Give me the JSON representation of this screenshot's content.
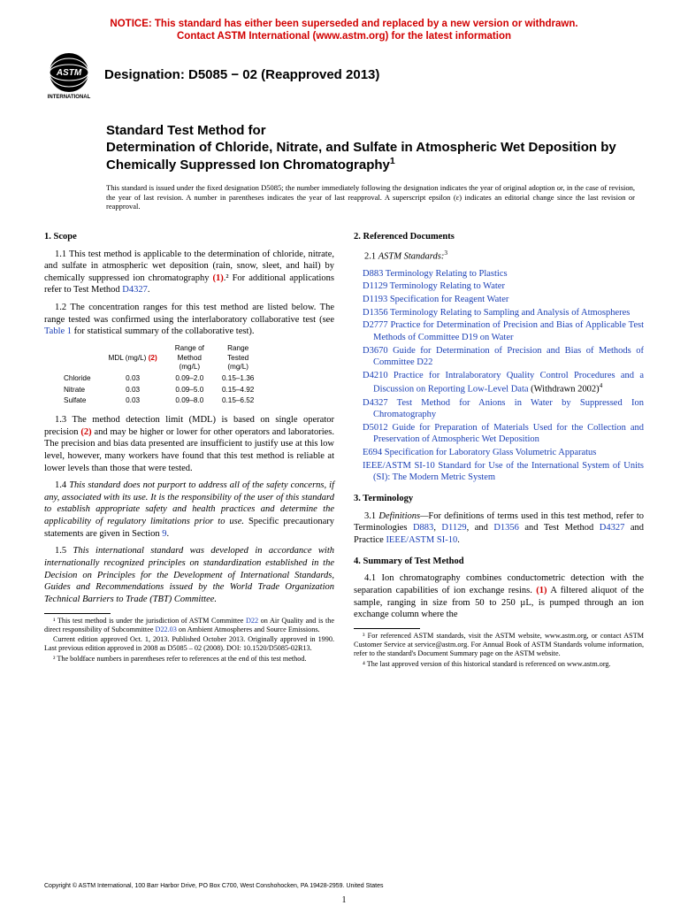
{
  "notice": {
    "line1": "NOTICE: This standard has either been superseded and replaced by a new version or withdrawn.",
    "line2": "Contact ASTM International (www.astm.org) for the latest information"
  },
  "logo": {
    "top_text": "ASTM",
    "bottom_text": "INTERNATIONAL",
    "fill": "#000000"
  },
  "designation": "Designation: D5085 − 02 (Reapproved 2013)",
  "title": {
    "lead": "Standard Test Method for",
    "main": "Determination of Chloride, Nitrate, and Sulfate in Atmospheric Wet Deposition by Chemically Suppressed Ion Chromatography",
    "sup": "1"
  },
  "issue_note": "This standard is issued under the fixed designation D5085; the number immediately following the designation indicates the year of original adoption or, in the case of revision, the year of last revision. A number in parentheses indicates the year of last reapproval. A superscript epsilon (ε) indicates an editorial change since the last revision or reapproval.",
  "sec1": {
    "head": "1. Scope",
    "p1a": "1.1 This test method is applicable to the determination of chloride, nitrate, and sulfate in atmospheric wet deposition (rain, snow, sleet, and hail) by chemically suppressed ion chromatography ",
    "p1_ref": "(1)",
    "p1b": ".² For additional applications refer to Test Method ",
    "p1_link": "D4327",
    "p1c": ".",
    "p2a": "1.2 The concentration ranges for this test method are listed below. The range tested was confirmed using the interlaboratory collaborative test (see ",
    "p2_link": "Table 1",
    "p2b": " for statistical summary of the collaborative test).",
    "p3a": "1.3 The method detection limit (MDL) is based on single operator precision ",
    "p3_ref": "(2)",
    "p3b": " and may be higher or lower for other operators and laboratories. The precision and bias data presented are insufficient to justify use at this low level, however, many workers have found that this test method is reliable at lower levels than those that were tested.",
    "p4a": "1.4 ",
    "p4_ital": "This standard does not purport to address all of the safety concerns, if any, associated with its use. It is the responsibility of the user of this standard to establish appropriate safety and health practices and determine the applicability of regulatory limitations prior to use.",
    "p4b": " Specific precautionary statements are given in Section ",
    "p4_link": "9",
    "p4c": ".",
    "p5a": "1.5 ",
    "p5_ital": "This international standard was developed in accordance with internationally recognized principles on standardization established in the Decision on Principles for the Development of International Standards, Guides and Recommendations issued by the World Trade Organization Technical Barriers to Trade (TBT) Committee."
  },
  "table12": {
    "h1": "MDL (mg/L) ",
    "h1_ref": "(2)",
    "h2a": "Range of",
    "h2b": "Method",
    "h2c": "(mg/L)",
    "h3a": "Range",
    "h3b": "Tested",
    "h3c": "(mg/L)",
    "rows": [
      {
        "lbl": "Chloride",
        "mdl": "0.03",
        "rom": "0.09–2.0",
        "rt": "0.15–1.36"
      },
      {
        "lbl": "Nitrate",
        "mdl": "0.03",
        "rom": "0.09–5.0",
        "rt": "0.15–4.92"
      },
      {
        "lbl": "Sulfate",
        "mdl": "0.03",
        "rom": "0.09–8.0",
        "rt": "0.15–6.52"
      }
    ]
  },
  "sec2": {
    "head": "2. Referenced Documents",
    "sub": "2.1 ",
    "sub_ital": "ASTM Standards:",
    "sub_sup": "3",
    "refs": [
      {
        "id": "D883",
        "txt": " Terminology Relating to Plastics"
      },
      {
        "id": "D1129",
        "txt": " Terminology Relating to Water"
      },
      {
        "id": "D1193",
        "txt": " Specification for Reagent Water"
      },
      {
        "id": "D1356",
        "txt": " Terminology Relating to Sampling and Analysis of Atmospheres"
      },
      {
        "id": "D2777",
        "txt": " Practice for Determination of Precision and Bias of Applicable Test Methods of Committee D19 on Water"
      },
      {
        "id": "D3670",
        "txt": " Guide for Determination of Precision and Bias of Methods of Committee D22"
      },
      {
        "id": "D4210",
        "txt": " Practice for Intralaboratory Quality Control Procedures and a Discussion on Reporting Low-Level Data",
        "suffix": " (Withdrawn 2002)",
        "sup": "4"
      },
      {
        "id": "D4327",
        "txt": " Test Method for Anions in Water by Suppressed Ion Chromatography"
      },
      {
        "id": "D5012",
        "txt": " Guide for Preparation of Materials Used for the Collection and Preservation of Atmospheric Wet Deposition"
      },
      {
        "id": "E694",
        "txt": " Specification for Laboratory Glass Volumetric Apparatus"
      },
      {
        "id": "IEEE/ASTM SI-10",
        "txt": " Standard for Use of the International System of Units (SI): The Modern Metric System"
      }
    ]
  },
  "sec3": {
    "head": "3. Terminology",
    "p1a": "3.1 ",
    "p1_ital": "Definitions—",
    "p1b": "For definitions of terms used in this test method, refer to Terminologies ",
    "l1": "D883",
    "c1": ", ",
    "l2": "D1129",
    "c2": ", and ",
    "l3": "D1356",
    "p1c": " and Test Method ",
    "l4": "D4327",
    "p1d": " and Practice ",
    "l5": "IEEE/ASTM SI-10",
    "p1e": "."
  },
  "sec4": {
    "head": "4. Summary of Test Method",
    "p1a": "4.1 Ion chromatography combines conductometric detection with the separation capabilities of ion exchange resins. ",
    "p1_ref": "(1)",
    "p1b": " A filtered aliquot of the sample, ranging in size from 50 to 250 µL, is pumped through an ion exchange column where the"
  },
  "footnotes_left": {
    "f1a": "¹ This test method is under the jurisdiction of ASTM Committee ",
    "f1_l1": "D22",
    "f1b": " on Air Quality and is the direct responsibility of Subcommittee ",
    "f1_l2": "D22.03",
    "f1c": " on Ambient Atmospheres and Source Emissions.",
    "f1d": "Current edition approved Oct. 1, 2013. Published October 2013. Originally approved in 1990. Last previous edition approved in 2008 as D5085 – 02 (2008). DOI: 10.1520/D5085-02R13.",
    "f2": "² The boldface numbers in parentheses refer to references at the end of this test method."
  },
  "footnotes_right": {
    "f3": "³ For referenced ASTM standards, visit the ASTM website, www.astm.org, or contact ASTM Customer Service at service@astm.org. For Annual Book of ASTM Standards volume information, refer to the standard's Document Summary page on the ASTM website.",
    "f4": "⁴ The last approved version of this historical standard is referenced on www.astm.org."
  },
  "copyright": "Copyright © ASTM International, 100 Barr Harbor Drive, PO Box C700, West Conshohocken, PA 19428-2959. United States",
  "pagenum": "1"
}
